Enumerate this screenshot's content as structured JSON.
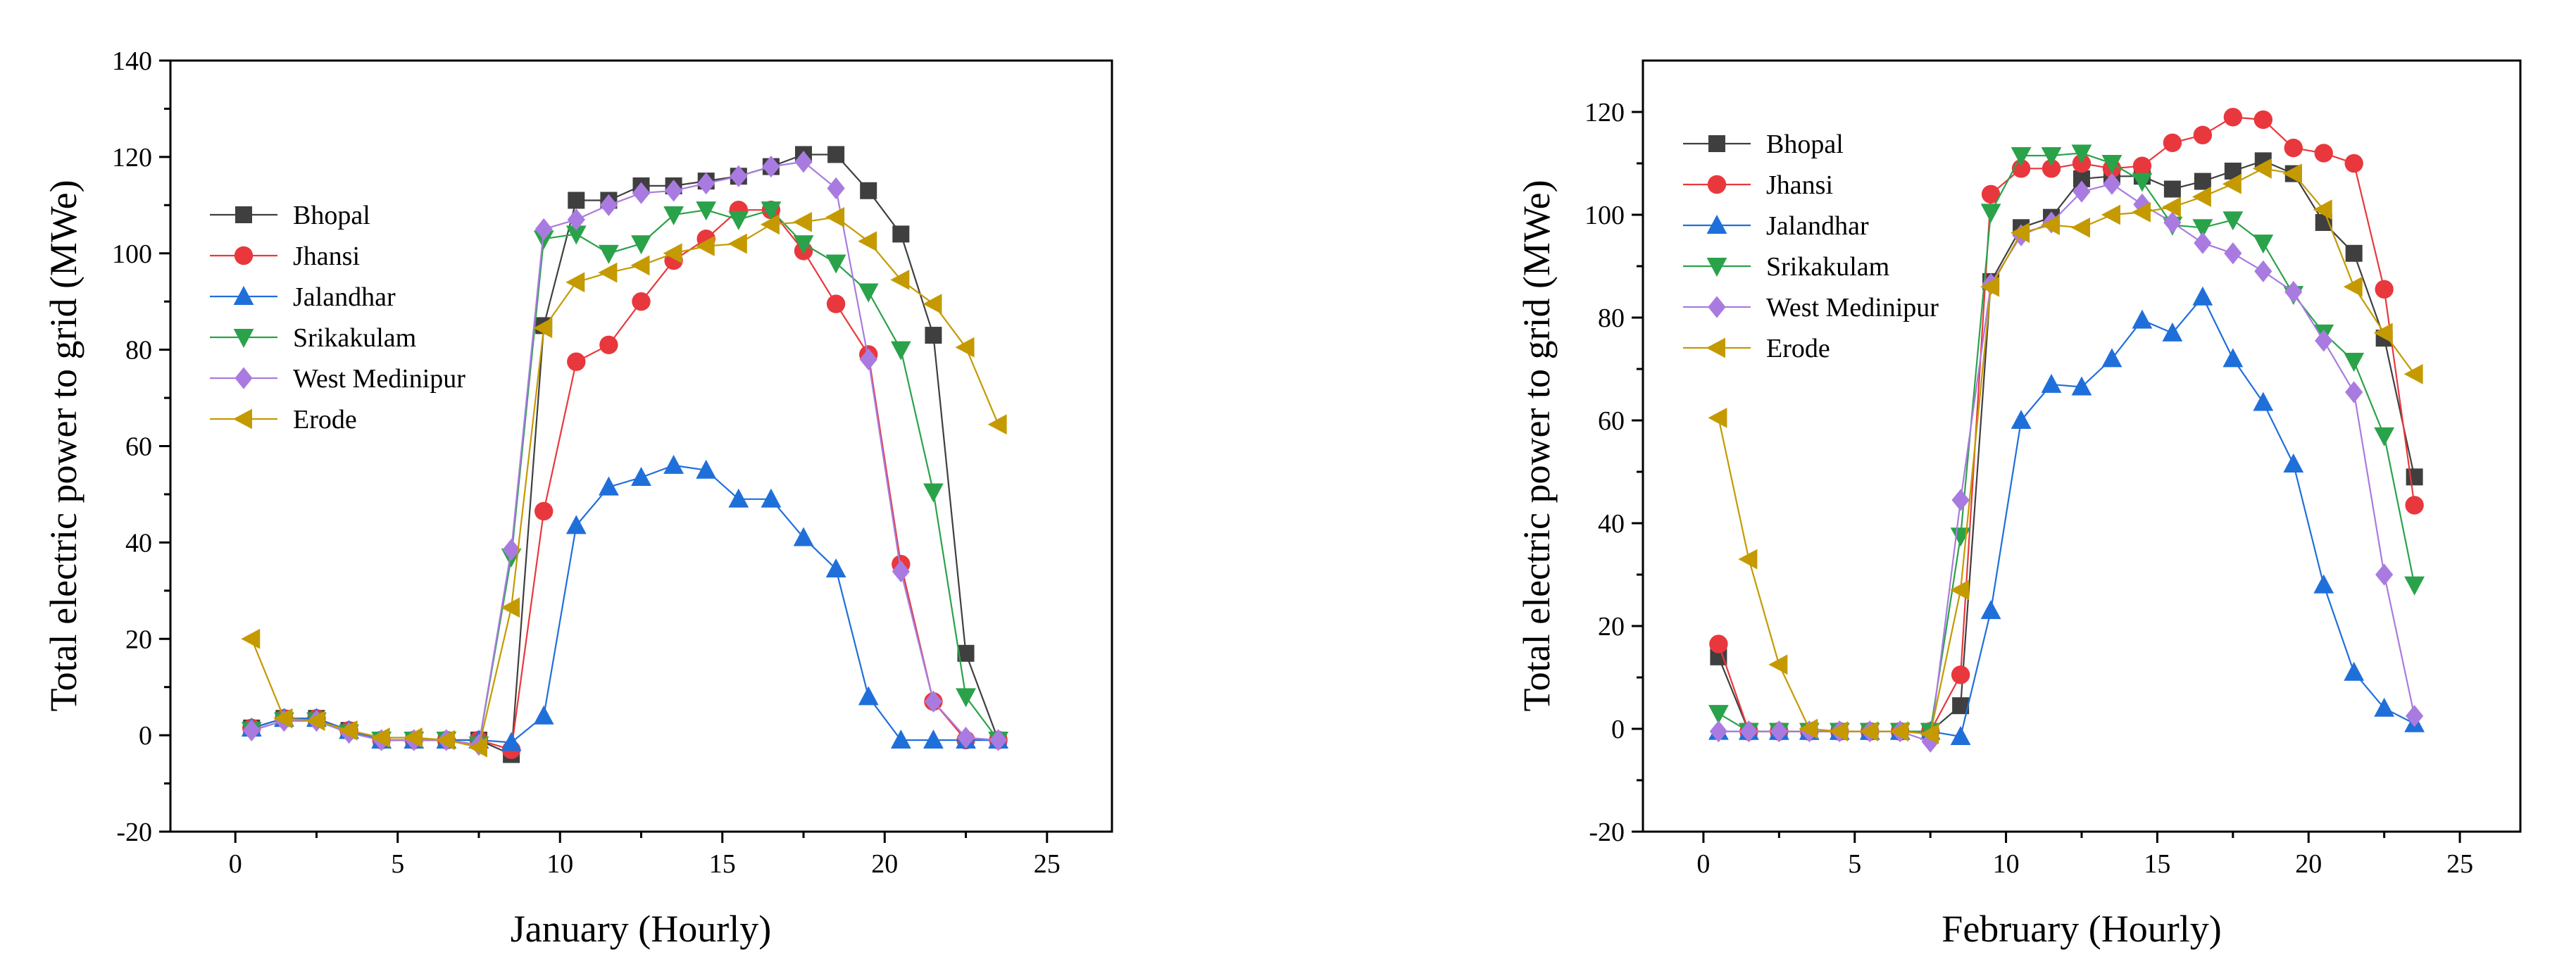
{
  "series_styles": [
    {
      "name": "Bhopal",
      "color": "#3f3f3f",
      "marker": "square"
    },
    {
      "name": "Jhansi",
      "color": "#e8383d",
      "marker": "circle"
    },
    {
      "name": "Jalandhar",
      "color": "#1f6fdb",
      "marker": "triangle-up"
    },
    {
      "name": "Srikakulam",
      "color": "#2aa24a",
      "marker": "triangle-down"
    },
    {
      "name": "West Medinipur",
      "color": "#a97be0",
      "marker": "diamond"
    },
    {
      "name": "Erode",
      "color": "#c49a00",
      "marker": "triangle-left"
    }
  ],
  "chart_data": [
    {
      "type": "line",
      "xlabel": "January (Hourly)",
      "ylabel": "Total electric power to grid (MWe)",
      "xlim": [
        -2,
        27
      ],
      "ylim": [
        -20,
        140
      ],
      "xticks": [
        0,
        5,
        10,
        15,
        20,
        25
      ],
      "yticks": [
        -20,
        0,
        20,
        40,
        60,
        80,
        100,
        120,
        140
      ],
      "legend_position": "upper-left",
      "x": [
        0.5,
        1.5,
        2.5,
        3.5,
        4.5,
        5.5,
        6.5,
        7.5,
        8.5,
        9.5,
        10.5,
        11.5,
        12.5,
        13.5,
        14.5,
        15.5,
        16.5,
        17.5,
        18.5,
        19.5,
        20.5,
        21.5,
        22.5,
        23.5
      ],
      "series": [
        {
          "name": "Bhopal",
          "values": [
            1.5,
            3.5,
            3.5,
            1,
            -1,
            -1,
            -1,
            -1,
            -4,
            85,
            111,
            111,
            114,
            114,
            115,
            116,
            118,
            120.5,
            120.5,
            113,
            104,
            83,
            17,
            -1
          ]
        },
        {
          "name": "Jhansi",
          "values": [
            1.5,
            3.5,
            3.5,
            1,
            -1,
            -1,
            -1,
            -1,
            -3,
            46.5,
            77.5,
            81,
            90,
            98.5,
            103,
            109,
            109,
            100.5,
            89.5,
            79,
            35.5,
            7,
            -1,
            -1
          ]
        },
        {
          "name": "Jalandhar",
          "values": [
            1.5,
            3.5,
            3.5,
            1,
            -1,
            -1,
            -1,
            -1,
            -1.5,
            4,
            43.5,
            51.5,
            53.5,
            56,
            55,
            49,
            49,
            41,
            34.5,
            8,
            -1,
            -1,
            -1,
            -1
          ]
        },
        {
          "name": "Srikakulam",
          "values": [
            1,
            3,
            3,
            0.5,
            -1,
            -1,
            -1,
            -2,
            37,
            103,
            104,
            100,
            102,
            108,
            109,
            107,
            109,
            102,
            98,
            92,
            80,
            50.5,
            8,
            -1
          ]
        },
        {
          "name": "West Medinipur",
          "values": [
            1,
            3,
            3,
            0.5,
            -1,
            -1,
            -1,
            -2,
            38.5,
            105,
            107,
            110,
            112.5,
            113,
            114.5,
            116,
            118,
            119,
            113.5,
            78,
            34,
            7,
            -0.5,
            -1
          ]
        },
        {
          "name": "Erode",
          "values": [
            20,
            3.5,
            3,
            1,
            -0.5,
            -0.5,
            -1,
            -2.5,
            26.5,
            84.5,
            94,
            96,
            97.5,
            100,
            101.5,
            102,
            106,
            106.5,
            107.5,
            102.5,
            94.5,
            89.5,
            80.5,
            64.5
          ]
        }
      ]
    },
    {
      "type": "line",
      "xlabel": "February (Hourly)",
      "ylabel": "Total electric power to grid (MWe)",
      "xlim": [
        -2,
        27
      ],
      "ylim": [
        -20,
        130
      ],
      "xticks": [
        0,
        5,
        10,
        15,
        20,
        25
      ],
      "yticks": [
        -20,
        0,
        20,
        40,
        60,
        80,
        100,
        120
      ],
      "legend_position": "upper-left",
      "x": [
        0.5,
        1.5,
        2.5,
        3.5,
        4.5,
        5.5,
        6.5,
        7.5,
        8.5,
        9.5,
        10.5,
        11.5,
        12.5,
        13.5,
        14.5,
        15.5,
        16.5,
        17.5,
        18.5,
        19.5,
        20.5,
        21.5,
        22.5,
        23.5
      ],
      "series": [
        {
          "name": "Bhopal",
          "values": [
            14,
            -0.5,
            -0.5,
            -0.5,
            -0.5,
            -0.5,
            -0.5,
            -0.5,
            4.5,
            87,
            97.5,
            99.5,
            107,
            107.5,
            107.5,
            105,
            106.5,
            108.5,
            110.5,
            108,
            98.5,
            92.5,
            76,
            49
          ]
        },
        {
          "name": "Jhansi",
          "values": [
            16.5,
            -0.5,
            -0.5,
            -0.5,
            -0.5,
            -0.5,
            -0.5,
            -0.5,
            10.5,
            104,
            109,
            109,
            110,
            109,
            109.5,
            114,
            115.5,
            119,
            118.5,
            113,
            112,
            110,
            85.5,
            43.5
          ]
        },
        {
          "name": "Jalandhar",
          "values": [
            -0.5,
            -0.5,
            -0.5,
            -0.5,
            -0.5,
            -0.5,
            -0.5,
            -0.5,
            -1.5,
            23,
            60,
            67,
            66.5,
            72,
            79.5,
            77,
            84,
            72,
            63.5,
            51.5,
            28,
            11,
            4,
            1
          ]
        },
        {
          "name": "Srikakulam",
          "values": [
            3,
            -0.5,
            -0.5,
            -0.5,
            -0.5,
            -0.5,
            -0.5,
            -0.5,
            37.5,
            100.5,
            111.5,
            111.5,
            112,
            110,
            106.5,
            98,
            97.5,
            99,
            94.5,
            84.5,
            77,
            71.5,
            57,
            28
          ]
        },
        {
          "name": "West Medinipur",
          "values": [
            -0.5,
            -0.5,
            -0.5,
            -0.5,
            -0.5,
            -0.5,
            -0.5,
            -2.5,
            44.5,
            86.5,
            96,
            98.5,
            104.5,
            106,
            102,
            98.5,
            94.5,
            92.5,
            89,
            85,
            75.5,
            65.5,
            30,
            2.5
          ]
        },
        {
          "name": "Erode",
          "values": [
            60.5,
            33,
            12.5,
            0,
            -0.5,
            -0.5,
            -0.5,
            -1,
            27,
            86,
            96.5,
            98,
            97.5,
            100,
            100.5,
            101.5,
            103.5,
            106,
            109,
            108,
            101,
            86,
            77,
            69
          ]
        }
      ]
    }
  ]
}
